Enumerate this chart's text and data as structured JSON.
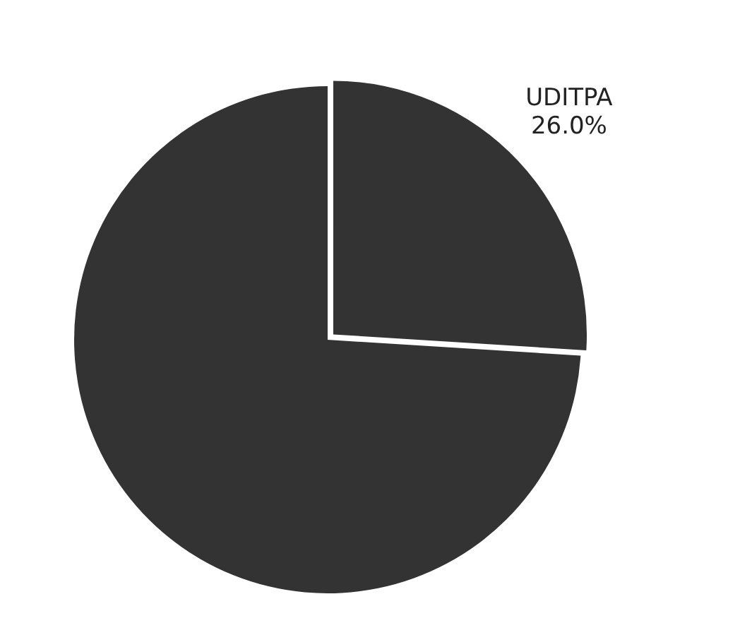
{
  "chart_data": {
    "type": "pie",
    "categories": [
      "UDITPA",
      null
    ],
    "values": [
      26.0,
      74.0
    ],
    "colors": [
      "#333333",
      "#333333"
    ],
    "value_labels": [
      "26.0%",
      null
    ],
    "legend": false
  }
}
